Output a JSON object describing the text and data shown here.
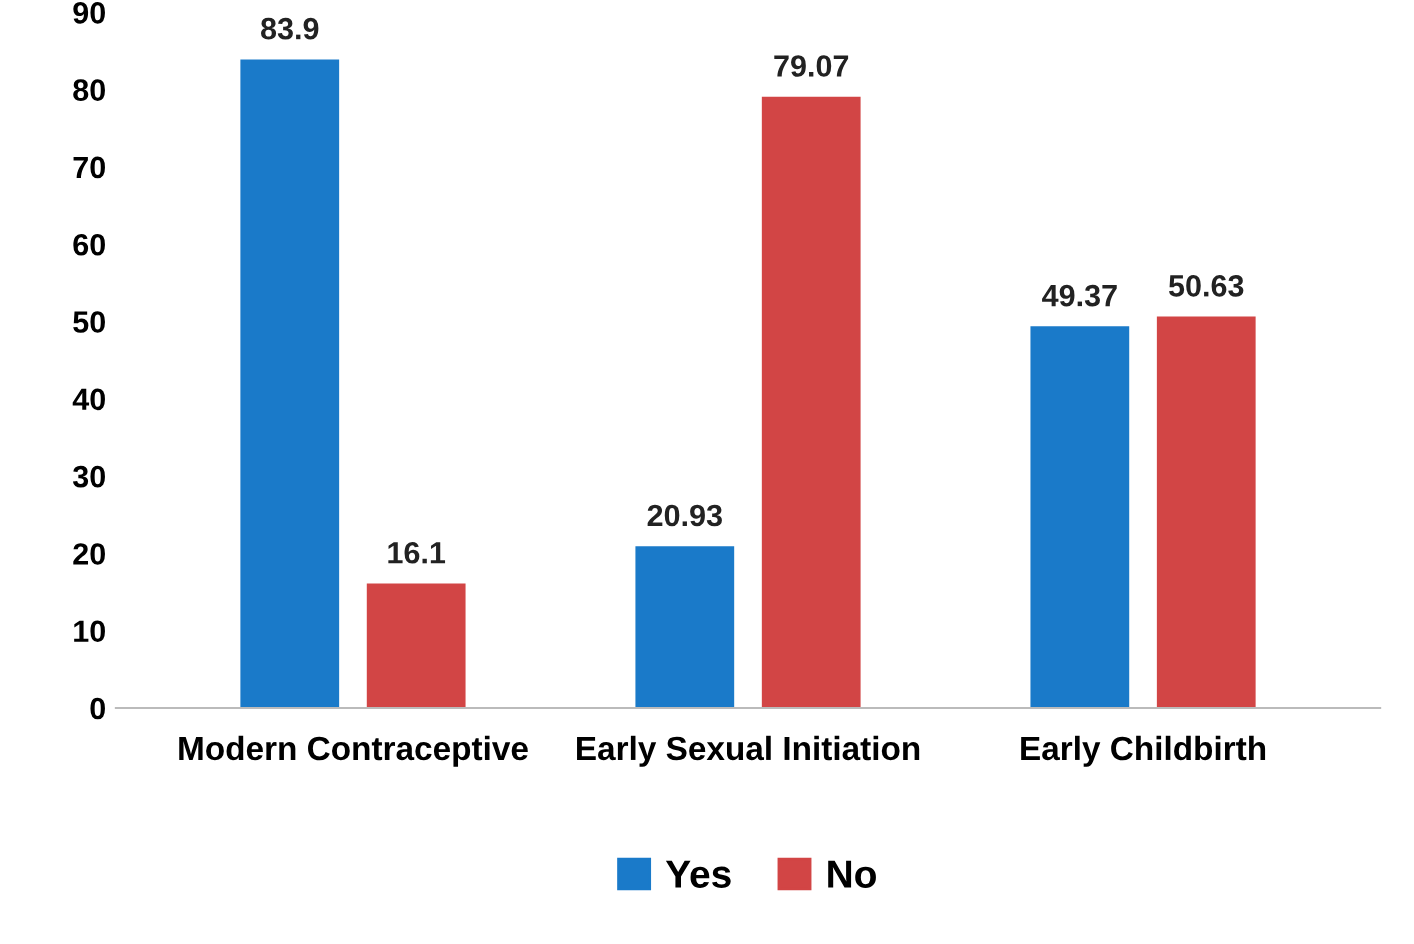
{
  "chart_data": {
    "type": "bar",
    "categories": [
      "Modern Contraceptive",
      "Early Sexual Initiation",
      "Early Childbirth"
    ],
    "series": [
      {
        "name": "Yes",
        "color": "#1a7ac9",
        "values": [
          83.9,
          20.93,
          49.37
        ]
      },
      {
        "name": "No",
        "color": "#d24545",
        "values": [
          16.1,
          79.07,
          50.63
        ]
      }
    ],
    "ylim": [
      0,
      90
    ],
    "yticks": [
      0,
      10,
      20,
      30,
      40,
      50,
      60,
      70,
      80,
      90
    ],
    "grid": false,
    "legend": "bottom",
    "data_labels": true
  }
}
